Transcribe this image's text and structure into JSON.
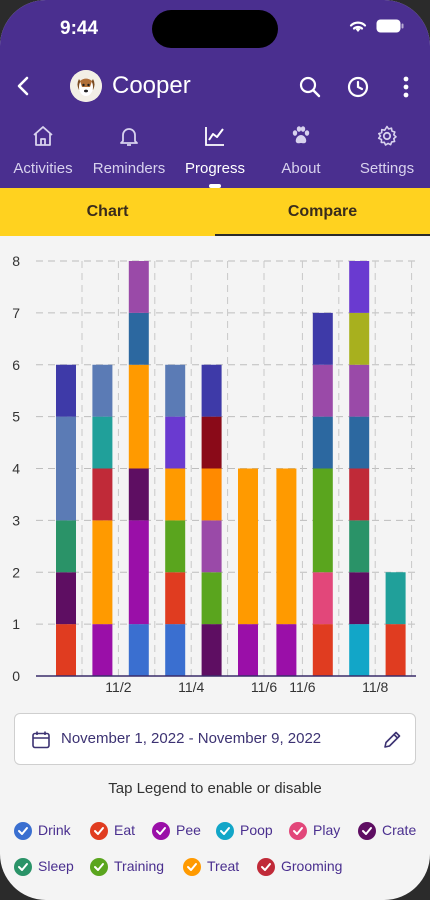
{
  "status": {
    "time": "9:44"
  },
  "appbar": {
    "title": "Cooper"
  },
  "tabs": [
    {
      "label": "Activities",
      "icon": "home-icon"
    },
    {
      "label": "Reminders",
      "icon": "bell-icon"
    },
    {
      "label": "Progress",
      "icon": "chart-icon"
    },
    {
      "label": "About",
      "icon": "paw-icon"
    },
    {
      "label": "Settings",
      "icon": "gear-icon"
    }
  ],
  "segments": {
    "chart": "Chart",
    "compare": "Compare"
  },
  "date_range": "November 1, 2022 - November 9, 2022",
  "hint": "Tap Legend to enable or disable",
  "legend": [
    {
      "label": "Drink",
      "color": "#3a6fd0"
    },
    {
      "label": "Eat",
      "color": "#e03c20"
    },
    {
      "label": "Pee",
      "color": "#9a0fa8"
    },
    {
      "label": "Poop",
      "color": "#12a6c8"
    },
    {
      "label": "Play",
      "color": "#e2477a"
    },
    {
      "label": "Crate",
      "color": "#5e0e62"
    },
    {
      "label": "Sleep",
      "color": "#2a9368"
    },
    {
      "label": "Training",
      "color": "#5aa51e"
    },
    {
      "label": "Treat",
      "color": "#ff9a00"
    },
    {
      "label": "Grooming",
      "color": "#c02a38"
    }
  ],
  "chart_data": {
    "type": "bar",
    "stacked": true,
    "ylim": [
      0,
      8
    ],
    "yticks": [
      "0",
      "1",
      "2",
      "3",
      "4",
      "5",
      "6",
      "7",
      "8"
    ],
    "xtick_labels": [
      "",
      "11/2",
      "",
      "11/4",
      "",
      "11/6",
      "11/6",
      "",
      "11/8",
      ""
    ],
    "bars": [
      {
        "segments": [
          [
            "#e03c20",
            1
          ],
          [
            "#5e0e62",
            1
          ],
          [
            "#2a9368",
            1
          ],
          [
            "#5b7bb5",
            2
          ],
          [
            "#3e3aa8",
            1
          ]
        ]
      },
      {
        "segments": [
          [
            "#9a0fa8",
            1
          ],
          [
            "#ff9a00",
            2
          ],
          [
            "#c02a38",
            1
          ],
          [
            "#20a09a",
            1
          ],
          [
            "#5b7bb5",
            1
          ]
        ]
      },
      {
        "segments": [
          [
            "#3a6fd0",
            1
          ],
          [
            "#9a0fa8",
            2
          ],
          [
            "#5e0e62",
            1
          ],
          [
            "#ff9a00",
            2
          ],
          [
            "#2c68a0",
            1
          ],
          [
            "#9a4aa8",
            1
          ]
        ]
      },
      {
        "segments": [
          [
            "#3a6fd0",
            1
          ],
          [
            "#e03c20",
            1
          ],
          [
            "#5aa51e",
            1
          ],
          [
            "#ff9a00",
            1
          ],
          [
            "#6a3ad0",
            1
          ],
          [
            "#5b7bb5",
            1
          ]
        ]
      },
      {
        "segments": [
          [
            "#5e0e62",
            1
          ],
          [
            "#5aa51e",
            1
          ],
          [
            "#9a4aa8",
            1
          ],
          [
            "#ff8a00",
            1
          ],
          [
            "#8a0a18",
            1
          ],
          [
            "#3e3aa8",
            1
          ]
        ]
      },
      {
        "segments": [
          [
            "#9a0fa8",
            1
          ],
          [
            "#ff9a00",
            3
          ]
        ]
      },
      {
        "segments": [
          [
            "#9a0fa8",
            1
          ],
          [
            "#ff9a00",
            3
          ]
        ]
      },
      {
        "segments": [
          [
            "#e03c20",
            1
          ],
          [
            "#e2477a",
            1
          ],
          [
            "#5aa51e",
            2
          ],
          [
            "#2c68a0",
            1
          ],
          [
            "#9a4aa8",
            1
          ],
          [
            "#3e3aa8",
            1
          ]
        ]
      },
      {
        "segments": [
          [
            "#12a6c8",
            1
          ],
          [
            "#5e0e62",
            1
          ],
          [
            "#2a9368",
            1
          ],
          [
            "#c02a38",
            1
          ],
          [
            "#2c68a0",
            1
          ],
          [
            "#9a4aa8",
            1
          ],
          [
            "#a8b01e",
            1
          ],
          [
            "#6a3ad0",
            1
          ]
        ]
      },
      {
        "segments": [
          [
            "#e03c20",
            1
          ],
          [
            "#20a09a",
            1
          ]
        ]
      }
    ]
  }
}
